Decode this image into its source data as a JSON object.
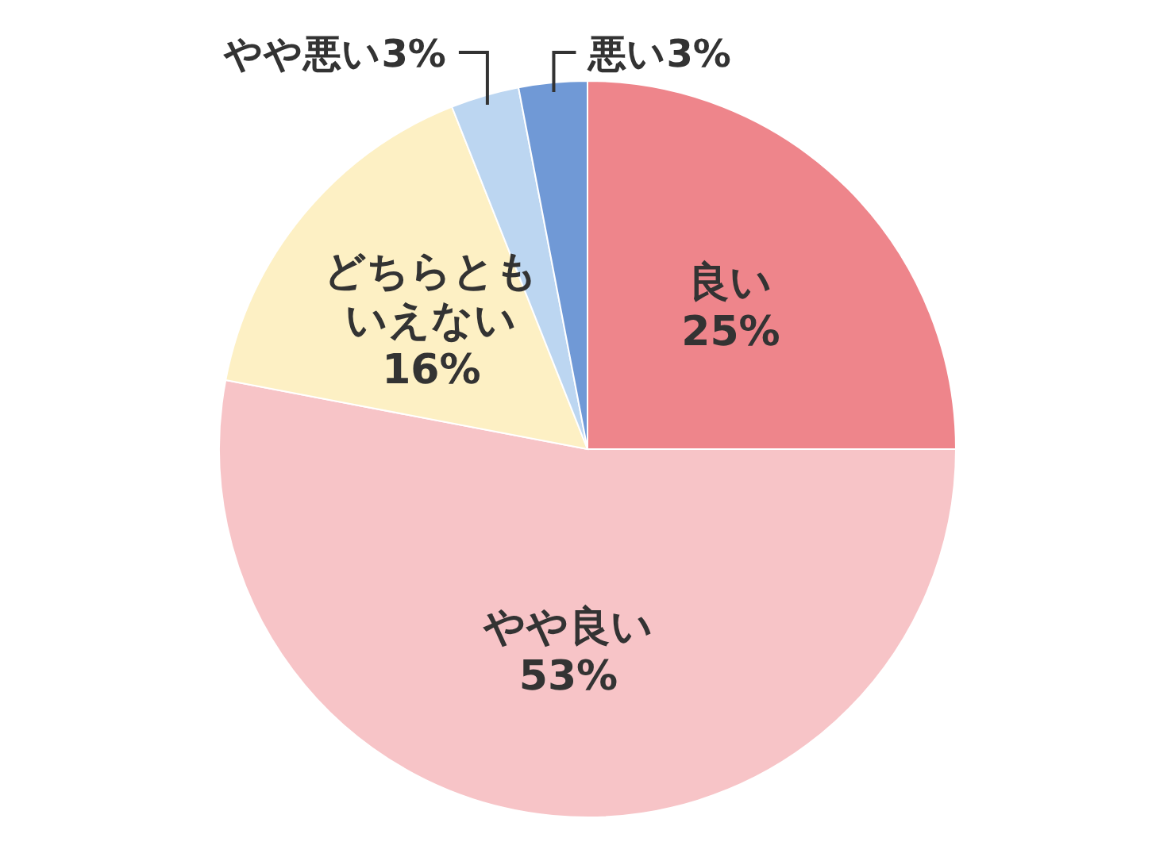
{
  "chart_data": {
    "type": "pie",
    "categories": [
      "良い",
      "やや良い",
      "どちらともいえない",
      "やや悪い",
      "悪い"
    ],
    "values": [
      25,
      53,
      16,
      3,
      3
    ],
    "value_labels": [
      "25%",
      "53%",
      "16%",
      "3%",
      "3%"
    ],
    "colors": [
      "#ee858b",
      "#f7c4c7",
      "#fdf0c4",
      "#bcd6f1",
      "#7099d6"
    ]
  }
}
